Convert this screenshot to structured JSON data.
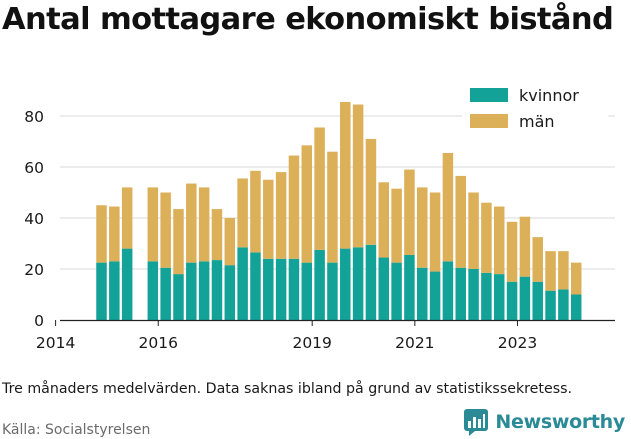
{
  "title": "Antal mottagare ekonomiskt bistånd",
  "note": "Tre månaders medelvärden. Data saknas ibland på grund av statistikssekretess.",
  "source": "Källa: Socialstyrelsen",
  "brand": {
    "name": "Newsworthy",
    "icon": "newsworthy-logo-icon",
    "color": "#2a8a95"
  },
  "chart_data": {
    "type": "bar",
    "stacked": true,
    "x_type": "quarter",
    "x": [
      "2014-Q4",
      "2015-Q1",
      "2015-Q2",
      "2015-Q4",
      "2016-Q1",
      "2016-Q2",
      "2016-Q3",
      "2016-Q4",
      "2017-Q1",
      "2017-Q2",
      "2017-Q3",
      "2017-Q4",
      "2018-Q1",
      "2018-Q2",
      "2018-Q3",
      "2018-Q4",
      "2019-Q1",
      "2019-Q2",
      "2019-Q3",
      "2019-Q4",
      "2020-Q1",
      "2020-Q2",
      "2020-Q3",
      "2020-Q4",
      "2021-Q1",
      "2021-Q2",
      "2021-Q3",
      "2021-Q4",
      "2022-Q1",
      "2022-Q2",
      "2022-Q3",
      "2022-Q4",
      "2023-Q1",
      "2023-Q2",
      "2023-Q3",
      "2023-Q4",
      "2024-Q1"
    ],
    "series": [
      {
        "name": "kvinnor",
        "color": "#13a298",
        "values": [
          22.5,
          23,
          28,
          23,
          20.5,
          18,
          22.5,
          23,
          23.5,
          21.5,
          28.5,
          26.5,
          24,
          24,
          24,
          22.5,
          27.5,
          22.5,
          28,
          28.5,
          29.5,
          24.5,
          22.5,
          25.5,
          20.5,
          19,
          23,
          20.5,
          20,
          18.5,
          18,
          15,
          17,
          15,
          11.5,
          12,
          10
        ]
      },
      {
        "name": "män",
        "color": "#dbb059",
        "values": [
          22.5,
          21.5,
          24,
          29,
          29.5,
          25.5,
          31,
          29,
          20,
          18.5,
          27,
          32,
          31,
          34,
          40.5,
          46,
          48,
          43.5,
          57.5,
          56,
          41.5,
          29.5,
          29,
          33.5,
          31.5,
          31,
          42.5,
          36,
          30,
          27.5,
          26.5,
          23.5,
          23.5,
          17.5,
          15.5,
          15,
          12.5
        ]
      }
    ],
    "x_ticks": [
      "2014",
      "2016",
      "2019",
      "2021",
      "2023"
    ],
    "y_ticks": [
      0,
      20,
      40,
      60,
      80
    ],
    "ylim": [
      0,
      88
    ],
    "legend": {
      "placement": "top-right"
    },
    "grid": "horizontal"
  }
}
